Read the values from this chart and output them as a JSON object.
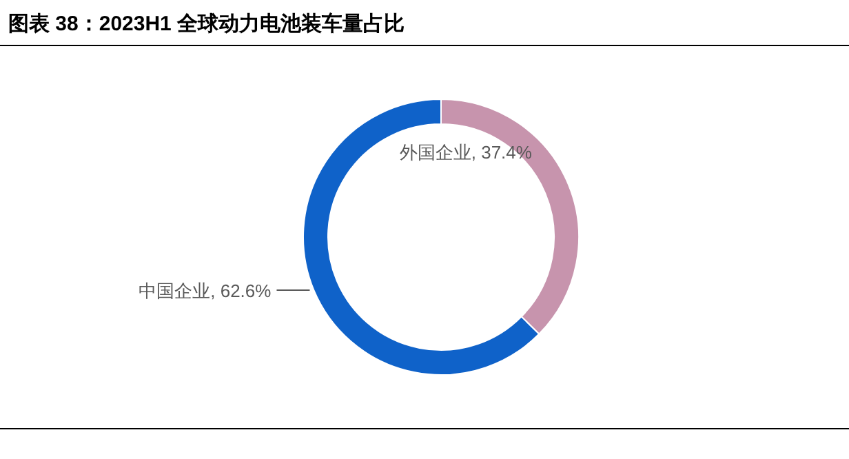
{
  "chart_data": {
    "type": "donut",
    "title": "图表 38：2023H1 全球动力电池装车量占比",
    "categories": [
      "中国企业",
      "外国企业"
    ],
    "values": [
      62.6,
      37.4
    ],
    "value_labels": [
      ", 62.6%",
      ", 37.4%"
    ],
    "colors": [
      "#0f62c9",
      "#c794ad"
    ]
  }
}
